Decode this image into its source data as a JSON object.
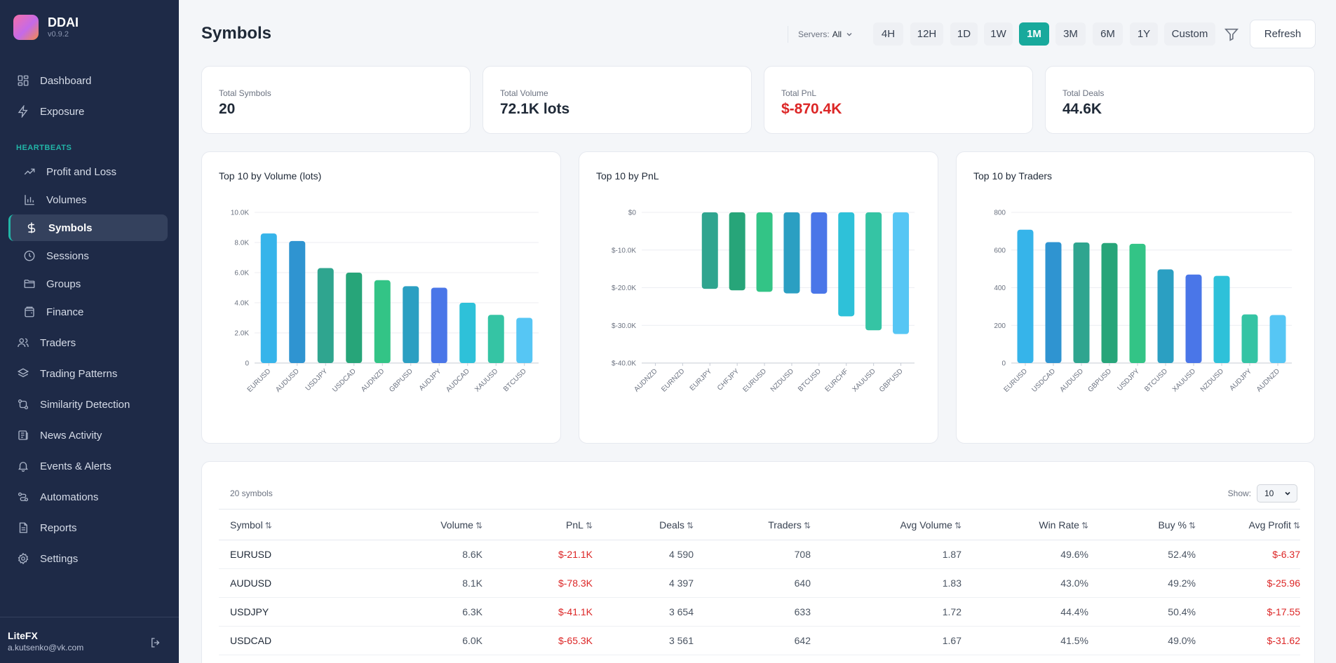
{
  "app": {
    "name": "DDAI",
    "version": "v0.9.2"
  },
  "sidebar": {
    "top_items": [
      {
        "label": "Dashboard",
        "icon": "dashboard-icon"
      },
      {
        "label": "Exposure",
        "icon": "lightning-icon"
      }
    ],
    "group_label": "HEARTBEATS",
    "sub_items": [
      {
        "label": "Profit and Loss",
        "icon": "trending-up-icon"
      },
      {
        "label": "Volumes",
        "icon": "bar-chart-icon"
      },
      {
        "label": "Symbols",
        "icon": "dollar-icon",
        "active": true
      },
      {
        "label": "Sessions",
        "icon": "clock-icon"
      },
      {
        "label": "Groups",
        "icon": "folder-icon"
      },
      {
        "label": "Finance",
        "icon": "wallet-icon"
      }
    ],
    "bottom_items": [
      {
        "label": "Traders",
        "icon": "users-icon"
      },
      {
        "label": "Trading Patterns",
        "icon": "patterns-icon"
      },
      {
        "label": "Similarity Detection",
        "icon": "similarity-icon"
      },
      {
        "label": "News Activity",
        "icon": "news-icon"
      },
      {
        "label": "Events & Alerts",
        "icon": "bell-icon"
      },
      {
        "label": "Automations",
        "icon": "automation-icon"
      },
      {
        "label": "Reports",
        "icon": "report-icon"
      },
      {
        "label": "Settings",
        "icon": "gear-icon"
      }
    ],
    "user": {
      "name": "LiteFX",
      "email": "a.kutsenko@vk.com"
    }
  },
  "header": {
    "title": "Symbols",
    "servers_label": "Servers:",
    "servers_value": "All",
    "timeframes": [
      "4H",
      "12H",
      "1D",
      "1W",
      "1M",
      "3M",
      "6M",
      "1Y",
      "Custom"
    ],
    "active_timeframe": "1M",
    "refresh_label": "Refresh"
  },
  "stats": [
    {
      "label": "Total Symbols",
      "value": "20"
    },
    {
      "label": "Total Volume",
      "value": "72.1K lots"
    },
    {
      "label": "Total PnL",
      "value": "$-870.4K",
      "negative": true
    },
    {
      "label": "Total Deals",
      "value": "44.6K"
    }
  ],
  "chart_data": [
    {
      "type": "bar",
      "title": "Top 10 by Volume (lots)",
      "categories": [
        "EURUSD",
        "AUDUSD",
        "USDJPY",
        "USDCAD",
        "AUDNZD",
        "GBPUSD",
        "AUDJPY",
        "AUDCAD",
        "XAUUSD",
        "BTCUSD"
      ],
      "values": [
        8600,
        8100,
        6300,
        6000,
        5500,
        5100,
        5000,
        4000,
        3200,
        3000
      ],
      "ylim": [
        0,
        10000
      ],
      "yticks": [
        "0",
        "2.0K",
        "4.0K",
        "6.0K",
        "8.0K",
        "10.0K"
      ],
      "grid": true
    },
    {
      "type": "bar",
      "title": "Top 10 by PnL",
      "categories": [
        "AUDNZD",
        "EURNZD",
        "EURJPY",
        "CHFJPY",
        "EURUSD",
        "NZDUSD",
        "BTCUSD",
        "EURCHF",
        "XAUUSD",
        "GBPUSD"
      ],
      "values": [
        0,
        0,
        -20300,
        -20700,
        -21100,
        -21500,
        -21600,
        -27600,
        -31300,
        -32300
      ],
      "ylim": [
        -40000,
        0
      ],
      "yticks": [
        "$0",
        "$-10.0K",
        "$-20.0K",
        "$-30.0K",
        "$-40.0K"
      ],
      "grid": true
    },
    {
      "type": "bar",
      "title": "Top 10 by Traders",
      "categories": [
        "EURUSD",
        "USDCAD",
        "AUDUSD",
        "GBPUSD",
        "USDJPY",
        "BTCUSD",
        "XAUUSD",
        "NZDUSD",
        "AUDJPY",
        "AUDNZD"
      ],
      "values": [
        708,
        642,
        640,
        637,
        633,
        497,
        470,
        463,
        258,
        255
      ],
      "ylim": [
        0,
        800
      ],
      "yticks": [
        "0",
        "200",
        "400",
        "600",
        "800"
      ],
      "grid": true
    }
  ],
  "table": {
    "count_label": "20 symbols",
    "show_label": "Show:",
    "show_value": "10",
    "columns": [
      "Symbol",
      "Volume",
      "PnL",
      "Deals",
      "Traders",
      "Avg Volume",
      "Win Rate",
      "Buy %",
      "Avg Profit"
    ],
    "rows": [
      [
        "EURUSD",
        "8.6K",
        "$-21.1K",
        "4 590",
        "708",
        "1.87",
        "49.6%",
        "52.4%",
        "$-6.37"
      ],
      [
        "AUDUSD",
        "8.1K",
        "$-78.3K",
        "4 397",
        "640",
        "1.83",
        "43.0%",
        "49.2%",
        "$-25.96"
      ],
      [
        "USDJPY",
        "6.3K",
        "$-41.1K",
        "3 654",
        "633",
        "1.72",
        "44.4%",
        "50.4%",
        "$-17.55"
      ],
      [
        "USDCAD",
        "6.0K",
        "$-65.3K",
        "3 561",
        "642",
        "1.67",
        "41.5%",
        "49.0%",
        "$-31.62"
      ]
    ]
  },
  "colors": {
    "sidebar_bg": "#1e2a47",
    "accent": "#18a99c",
    "negative": "#dc2626",
    "bar_palette": [
      "#36b4ea",
      "#2f94d1",
      "#2fa58f",
      "#27a579",
      "#33c486",
      "#2b9fc2",
      "#4a76e8",
      "#2ec1d9",
      "#35c4a4",
      "#56c6f4"
    ]
  }
}
